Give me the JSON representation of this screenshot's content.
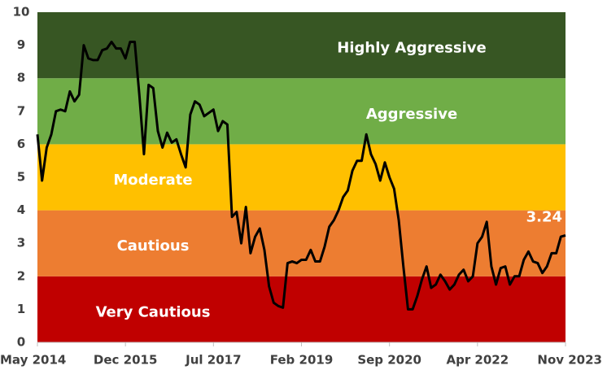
{
  "chart_data": {
    "type": "line",
    "bands": [
      {
        "from": 0,
        "to": 2,
        "label": "Very Cautious",
        "color": "#c00000"
      },
      {
        "from": 2,
        "to": 4,
        "label": "Cautious",
        "color": "#ed7d31"
      },
      {
        "from": 4,
        "to": 6,
        "label": "Moderate",
        "color": "#ffc000"
      },
      {
        "from": 6,
        "to": 8,
        "label": "Aggressive",
        "color": "#70ad47"
      },
      {
        "from": 8,
        "to": 10,
        "label": "Highly Aggressive",
        "color": "#375623"
      }
    ],
    "x": [
      "2014-05",
      "2014-06",
      "2014-07",
      "2014-08",
      "2014-09",
      "2014-10",
      "2014-11",
      "2014-12",
      "2015-01",
      "2015-02",
      "2015-03",
      "2015-04",
      "2015-05",
      "2015-06",
      "2015-07",
      "2015-08",
      "2015-09",
      "2015-10",
      "2015-11",
      "2015-12",
      "2016-01",
      "2016-02",
      "2016-03",
      "2016-04",
      "2016-05",
      "2016-06",
      "2016-07",
      "2016-08",
      "2016-09",
      "2016-10",
      "2016-11",
      "2016-12",
      "2017-01",
      "2017-02",
      "2017-03",
      "2017-04",
      "2017-05",
      "2017-06",
      "2017-07",
      "2017-08",
      "2017-09",
      "2017-10",
      "2017-11",
      "2017-12",
      "2018-01",
      "2018-02",
      "2018-03",
      "2018-04",
      "2018-05",
      "2018-06",
      "2018-07",
      "2018-08",
      "2018-09",
      "2018-10",
      "2018-11",
      "2018-12",
      "2019-01",
      "2019-02",
      "2019-03",
      "2019-04",
      "2019-05",
      "2019-06",
      "2019-07",
      "2019-08",
      "2019-09",
      "2019-10",
      "2019-11",
      "2019-12",
      "2020-01",
      "2020-02",
      "2020-03",
      "2020-04",
      "2020-05",
      "2020-06",
      "2020-07",
      "2020-08",
      "2020-09",
      "2020-10",
      "2020-11",
      "2020-12",
      "2021-01",
      "2021-02",
      "2021-03",
      "2021-04",
      "2021-05",
      "2021-06",
      "2021-07",
      "2021-08",
      "2021-09",
      "2021-10",
      "2021-11",
      "2021-12",
      "2022-01",
      "2022-02",
      "2022-03",
      "2022-04",
      "2022-05",
      "2022-06",
      "2022-07",
      "2022-08",
      "2022-09",
      "2022-10",
      "2022-11",
      "2022-12",
      "2023-01",
      "2023-02",
      "2023-03",
      "2023-04",
      "2023-05",
      "2023-06",
      "2023-07",
      "2023-08",
      "2023-09",
      "2023-10",
      "2023-11"
    ],
    "series": [
      {
        "color": "#000000",
        "values": [
          6.3,
          4.9,
          5.9,
          6.3,
          7.0,
          7.05,
          7.0,
          7.6,
          7.3,
          7.5,
          9.0,
          8.6,
          8.55,
          8.55,
          8.85,
          8.9,
          9.1,
          8.9,
          8.9,
          8.6,
          9.1,
          9.1,
          7.5,
          5.7,
          7.8,
          7.7,
          6.4,
          5.9,
          6.35,
          6.05,
          6.15,
          5.7,
          5.3,
          6.9,
          7.3,
          7.2,
          6.85,
          6.95,
          7.05,
          6.4,
          6.7,
          6.6,
          3.8,
          3.95,
          3.0,
          4.1,
          2.7,
          3.2,
          3.45,
          2.8,
          1.7,
          1.2,
          1.1,
          1.05,
          2.4,
          2.45,
          2.4,
          2.5,
          2.5,
          2.8,
          2.45,
          2.45,
          2.9,
          3.5,
          3.7,
          4.0,
          4.4,
          4.6,
          5.2,
          5.5,
          5.5,
          6.3,
          5.7,
          5.4,
          4.9,
          5.45,
          5.0,
          4.65,
          3.7,
          2.3,
          1.0,
          1.0,
          1.4,
          1.9,
          2.3,
          1.65,
          1.75,
          2.05,
          1.85,
          1.6,
          1.75,
          2.05,
          2.2,
          1.85,
          2.0,
          3.0,
          3.2,
          3.65,
          2.3,
          1.75,
          2.25,
          2.3,
          1.75,
          2.0,
          2.0,
          2.5,
          2.75,
          2.45,
          2.4,
          2.1,
          2.3,
          2.7,
          2.7,
          3.2,
          3.24
        ]
      }
    ],
    "xlim": [
      "2014-05",
      "2023-11"
    ],
    "xticks": [
      {
        "value": "2014-05",
        "label": "May 2014"
      },
      {
        "value": "2015-12",
        "label": "Dec 2015"
      },
      {
        "value": "2017-07",
        "label": "Jul 2017"
      },
      {
        "value": "2019-02",
        "label": "Feb 2019"
      },
      {
        "value": "2020-09",
        "label": "Sep 2020"
      },
      {
        "value": "2022-04",
        "label": "Apr 2022"
      },
      {
        "value": "2023-11",
        "label": "Nov 2023"
      }
    ],
    "ylim": [
      0,
      10
    ],
    "yticks": [
      0,
      1,
      2,
      3,
      4,
      5,
      6,
      7,
      8,
      9,
      10
    ],
    "grid": false
  }
}
